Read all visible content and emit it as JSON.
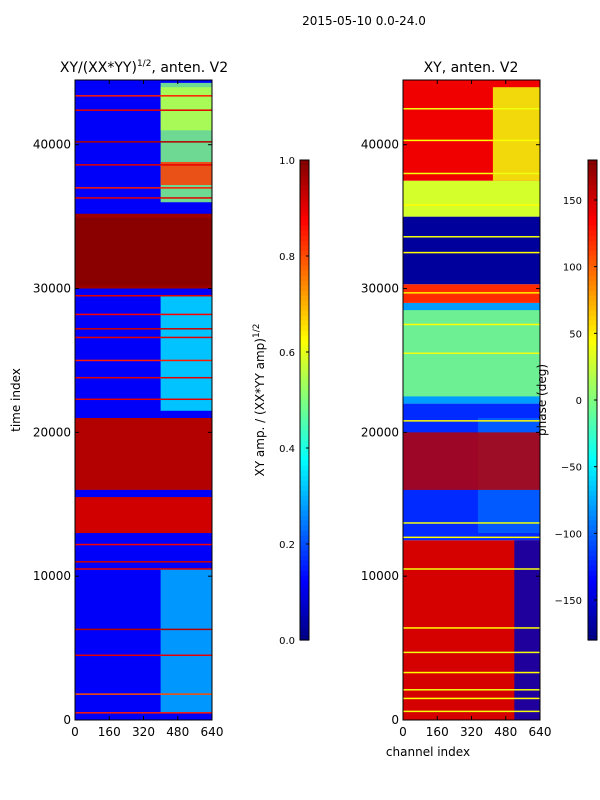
{
  "figure": {
    "suptitle": "2015-05-10 0.0-24.0"
  },
  "chart_data": [
    {
      "type": "heatmap",
      "title_main": "XY/(XX*YY)",
      "title_exp": "1/2",
      "title_suffix": ", anten. V2",
      "xlabel": "",
      "ylabel": "time index",
      "xlim": [
        0,
        640
      ],
      "ylim": [
        0,
        44500
      ],
      "x_ticks": [
        0,
        160,
        320,
        480,
        640
      ],
      "y_ticks": [
        0,
        10000,
        20000,
        30000,
        40000
      ],
      "colormap": "jet",
      "colorbar": {
        "label_main": "XY amp. / (XX*YY amp)",
        "label_exp": "1/2",
        "vmin": 0.0,
        "vmax": 1.0,
        "ticks": [
          "0.0",
          "0.2",
          "0.4",
          "0.6",
          "0.8",
          "1.0"
        ],
        "tick_values": [
          0.0,
          0.2,
          0.4,
          0.6,
          0.8,
          1.0
        ]
      },
      "bands": [
        {
          "y0": 0,
          "y1": 44500,
          "v": 0.12
        },
        {
          "y0": 16000,
          "y1": 21000,
          "v": 0.95
        },
        {
          "y0": 13000,
          "y1": 15500,
          "v": 0.92
        },
        {
          "y0": 30000,
          "y1": 35200,
          "v": 0.97
        },
        {
          "y0": 30200,
          "y1": 34900,
          "v": 0.99
        }
      ],
      "lines": [
        {
          "y": 500,
          "v": 0.85
        },
        {
          "y": 1800,
          "v": 0.8
        },
        {
          "y": 4500,
          "v": 0.9
        },
        {
          "y": 6300,
          "v": 0.95
        },
        {
          "y": 10500,
          "v": 0.9
        },
        {
          "y": 11000,
          "v": 0.92
        },
        {
          "y": 12200,
          "v": 0.88
        },
        {
          "y": 22300,
          "v": 0.9
        },
        {
          "y": 23800,
          "v": 0.9
        },
        {
          "y": 25000,
          "v": 0.85
        },
        {
          "y": 26600,
          "v": 0.9
        },
        {
          "y": 27200,
          "v": 0.92
        },
        {
          "y": 28200,
          "v": 0.88
        },
        {
          "y": 29500,
          "v": 0.9
        },
        {
          "y": 36300,
          "v": 0.9
        },
        {
          "y": 37000,
          "v": 0.85
        },
        {
          "y": 38600,
          "v": 0.9
        },
        {
          "y": 40200,
          "v": 0.95
        },
        {
          "y": 42400,
          "v": 0.9
        },
        {
          "y": 43400,
          "v": 0.85
        }
      ],
      "patches": [
        {
          "x0": 400,
          "x1": 640,
          "y0": 500,
          "y1": 10500,
          "v": 0.3
        },
        {
          "x0": 400,
          "x1": 640,
          "y0": 21500,
          "y1": 29500,
          "v": 0.35
        },
        {
          "x0": 400,
          "x1": 640,
          "y0": 36000,
          "y1": 44300,
          "v": 0.5
        },
        {
          "x0": 400,
          "x1": 640,
          "y0": 37200,
          "y1": 38800,
          "v": 0.82
        },
        {
          "x0": 400,
          "x1": 640,
          "y0": 41000,
          "y1": 44000,
          "v": 0.55
        }
      ]
    },
    {
      "type": "heatmap",
      "title_main": "XY, anten. V2",
      "xlabel": "channel index",
      "ylabel": "",
      "xlim": [
        0,
        640
      ],
      "ylim": [
        0,
        44500
      ],
      "x_ticks": [
        0,
        160,
        320,
        480,
        640
      ],
      "y_ticks": [
        0,
        10000,
        20000,
        30000,
        40000
      ],
      "colormap": "jet",
      "colorbar": {
        "label_main": "phase (deg)",
        "vmin": -180,
        "vmax": 180,
        "ticks": [
          "150",
          "100",
          "50",
          "0",
          "−50",
          "−100",
          "−150"
        ],
        "tick_values": [
          150,
          100,
          50,
          0,
          -50,
          -100,
          -150
        ]
      },
      "bands": [
        {
          "y0": 0,
          "y1": 12500,
          "v": 150
        },
        {
          "y0": 12500,
          "y1": 22000,
          "v": -120
        },
        {
          "y0": 22000,
          "y1": 29000,
          "v": -80
        },
        {
          "y0": 29000,
          "y1": 30300,
          "v": 120
        },
        {
          "y0": 30300,
          "y1": 35000,
          "v": -170
        },
        {
          "y0": 35000,
          "y1": 37500,
          "v": 30
        },
        {
          "y0": 37500,
          "y1": 44500,
          "v": 140
        }
      ],
      "lines": [
        {
          "y": 600,
          "v": 40
        },
        {
          "y": 1500,
          "v": 45
        },
        {
          "y": 2100,
          "v": 40
        },
        {
          "y": 3300,
          "v": 45
        },
        {
          "y": 4700,
          "v": 40
        },
        {
          "y": 6400,
          "v": 45
        },
        {
          "y": 10500,
          "v": 40
        },
        {
          "y": 12700,
          "v": 45
        },
        {
          "y": 13700,
          "v": 40
        },
        {
          "y": 20800,
          "v": 45
        },
        {
          "y": 25500,
          "v": 40
        },
        {
          "y": 27500,
          "v": 45
        },
        {
          "y": 29700,
          "v": 50
        },
        {
          "y": 32500,
          "v": 45
        },
        {
          "y": 33600,
          "v": 40
        },
        {
          "y": 35800,
          "v": 45
        },
        {
          "y": 38000,
          "v": 40
        },
        {
          "y": 40300,
          "v": 45
        },
        {
          "y": 42500,
          "v": 40
        }
      ],
      "patches": [
        {
          "x0": 520,
          "x1": 640,
          "y0": 0,
          "y1": 12500,
          "v": -160
        },
        {
          "x0": 350,
          "x1": 640,
          "y0": 13000,
          "y1": 21000,
          "v": -100
        },
        {
          "x0": 0,
          "x1": 640,
          "y0": 16000,
          "y1": 20000,
          "v": 160
        },
        {
          "x0": 420,
          "x1": 640,
          "y0": 37500,
          "y1": 44000,
          "v": 40
        },
        {
          "x0": 0,
          "x1": 640,
          "y0": 22500,
          "y1": 28500,
          "v": 0
        }
      ]
    }
  ]
}
